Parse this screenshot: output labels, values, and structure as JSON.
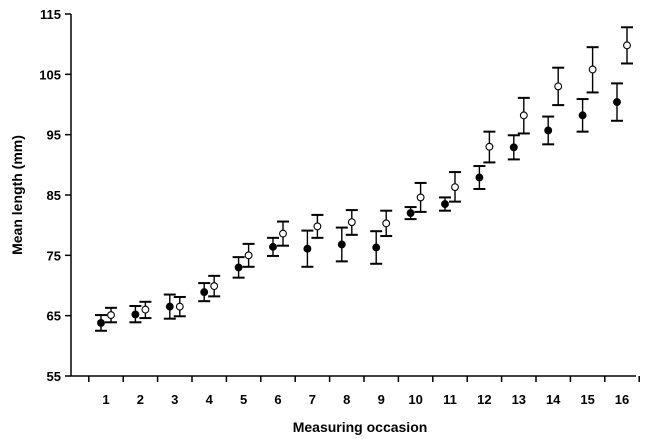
{
  "chart_data": {
    "type": "scatter",
    "title": "",
    "xlabel": "Measuring occasion",
    "ylabel": "Mean length (mm)",
    "categories": [
      "1",
      "2",
      "3",
      "4",
      "5",
      "6",
      "7",
      "8",
      "9",
      "10",
      "11",
      "12",
      "13",
      "14",
      "15",
      "16"
    ],
    "ylim": [
      55,
      115
    ],
    "yticks": [
      55,
      65,
      75,
      85,
      95,
      105,
      115
    ],
    "grid": false,
    "series": [
      {
        "marker": "filled-circle",
        "values": [
          63.8,
          65.2,
          66.5,
          68.9,
          73.0,
          76.4,
          76.1,
          76.8,
          76.3,
          82.0,
          83.5,
          87.9,
          92.9,
          95.7,
          98.2,
          100.4
        ],
        "err_low": [
          62.5,
          63.9,
          64.5,
          67.4,
          71.3,
          74.9,
          73.1,
          74.0,
          73.6,
          81.0,
          82.4,
          86.0,
          90.9,
          93.4,
          95.5,
          97.3
        ],
        "err_high": [
          65.1,
          66.6,
          68.5,
          70.4,
          74.7,
          77.9,
          79.1,
          79.6,
          79.0,
          83.0,
          84.6,
          89.8,
          94.9,
          98.0,
          100.9,
          103.5
        ]
      },
      {
        "marker": "open-circle",
        "values": [
          65.1,
          66.0,
          66.5,
          69.9,
          75.0,
          78.6,
          79.8,
          80.5,
          80.3,
          84.6,
          86.3,
          93.0,
          98.2,
          103.0,
          105.8,
          109.8
        ],
        "err_low": [
          63.9,
          64.6,
          64.9,
          68.2,
          73.1,
          76.6,
          77.9,
          78.4,
          78.2,
          82.2,
          83.9,
          90.4,
          95.2,
          99.9,
          102.0,
          106.8
        ],
        "err_high": [
          66.3,
          67.3,
          68.1,
          71.6,
          76.9,
          80.6,
          81.7,
          82.5,
          82.4,
          87.0,
          88.8,
          95.5,
          101.1,
          106.1,
          109.5,
          112.8
        ]
      }
    ]
  }
}
